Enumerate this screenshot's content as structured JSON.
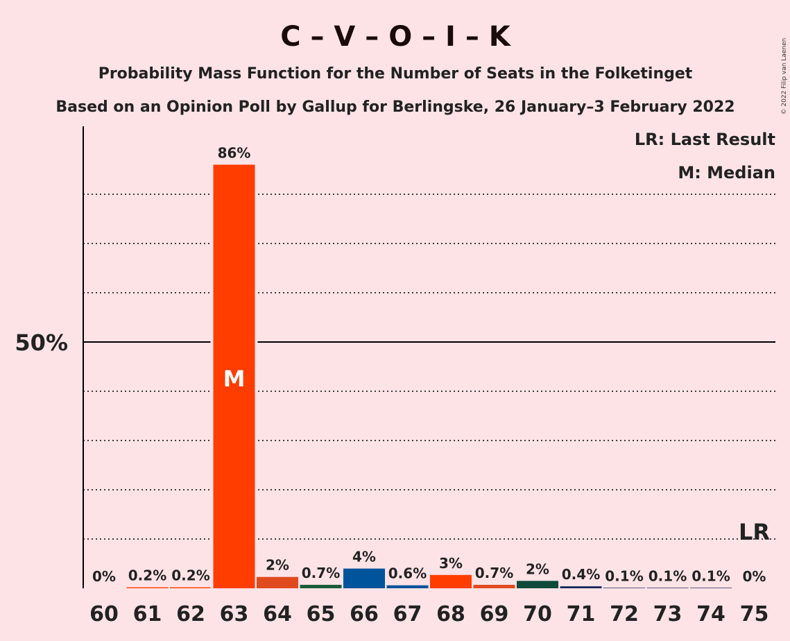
{
  "chart_data": {
    "type": "bar",
    "title": "C – V – O – I – K",
    "subtitle": "Probability Mass Function for the Number of Seats in the Folketinget",
    "subtitle2": "Based on an Opinion Poll by Gallup for Berlingske, 26 January–3 February 2022",
    "credit": "© 2022 Filip van Laenen",
    "legend": [
      "LR: Last Result",
      "M: Median"
    ],
    "legend_placement": "top-right",
    "ylim": [
      0,
      94
    ],
    "y_ticks": [
      {
        "value": 50,
        "label": "50%"
      }
    ],
    "gridlines": [
      10,
      20,
      30,
      40,
      60,
      70,
      80
    ],
    "categories": [
      "60",
      "61",
      "62",
      "63",
      "64",
      "65",
      "66",
      "67",
      "68",
      "69",
      "70",
      "71",
      "72",
      "73",
      "74",
      "75"
    ],
    "values": [
      0,
      0.2,
      0.2,
      86,
      2.3,
      0.7,
      4,
      0.6,
      2.7,
      0.7,
      1.5,
      0.4,
      0.1,
      0.1,
      0.1,
      0
    ],
    "labels": [
      "0%",
      "0.2%",
      "0.2%",
      "86%",
      "2%",
      "0.7%",
      "4%",
      "0.6%",
      "3%",
      "0.7%",
      "2%",
      "0.4%",
      "0.1%",
      "0.1%",
      "0.1%",
      "0%"
    ],
    "colors": [
      "#ff3d00",
      "#ff3d00",
      "#ff3d00",
      "#ff3d00",
      "#e04a1f",
      "#1a5c3a",
      "#00549c",
      "#00549c",
      "#ff3d00",
      "#e04a1f",
      "#0f4a3a",
      "#14285c",
      "#14285c",
      "#14285c",
      "#14285c",
      "#14285c"
    ],
    "median_category": "63",
    "median_label": "M",
    "last_result_category": "75",
    "last_result_label": "LR"
  }
}
